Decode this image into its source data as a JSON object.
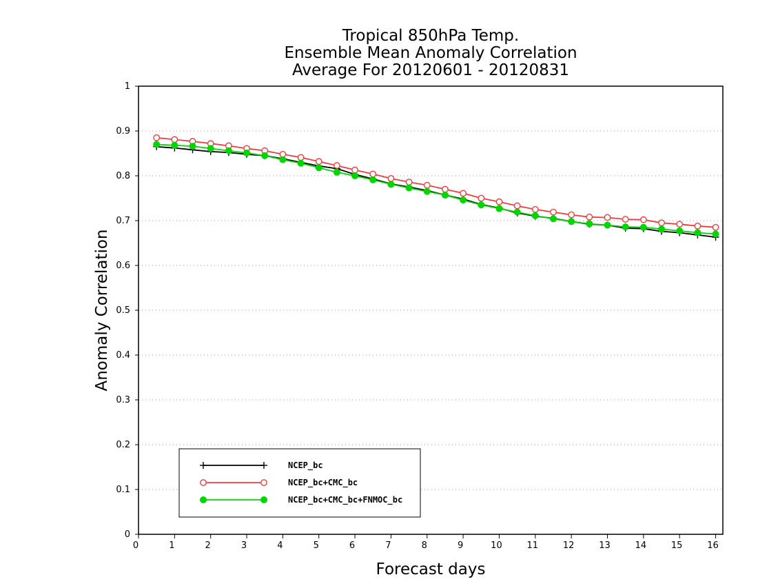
{
  "chart_data": {
    "type": "line",
    "title_lines": [
      "Tropical 850hPa Temp.",
      "Ensemble Mean Anomaly Correlation",
      "Average For 20120601 - 20120831"
    ],
    "xlabel": "Forecast days",
    "ylabel": "Anomaly Correlation",
    "xlim": [
      0,
      16.2
    ],
    "ylim": [
      0,
      1
    ],
    "x_ticks": [
      0,
      1,
      2,
      3,
      4,
      5,
      6,
      7,
      8,
      9,
      10,
      11,
      12,
      13,
      14,
      15,
      16
    ],
    "y_ticks": [
      "0",
      "0.1",
      "0.2",
      "0.3",
      "0.4",
      "0.5",
      "0.6",
      "0.7",
      "0.8",
      "0.9",
      "1"
    ],
    "grid": "horizontal dotted",
    "legend_position": "lower-left",
    "x": [
      0.5,
      1.0,
      1.5,
      2.0,
      2.5,
      3.0,
      3.5,
      4.0,
      4.5,
      5.0,
      5.5,
      6.0,
      6.5,
      7.0,
      7.5,
      8.0,
      8.5,
      9.0,
      9.5,
      10.0,
      10.5,
      11.0,
      11.5,
      12.0,
      12.5,
      13.0,
      13.5,
      14.0,
      14.5,
      15.0,
      15.5,
      16.0
    ],
    "series": [
      {
        "name": "NCEP_bc",
        "color": "#000000",
        "marker": "plus",
        "values": [
          0.865,
          0.862,
          0.858,
          0.854,
          0.852,
          0.848,
          0.845,
          0.838,
          0.83,
          0.822,
          0.816,
          0.803,
          0.793,
          0.782,
          0.775,
          0.767,
          0.757,
          0.748,
          0.736,
          0.728,
          0.717,
          0.71,
          0.705,
          0.698,
          0.692,
          0.69,
          0.683,
          0.682,
          0.676,
          0.673,
          0.668,
          0.663
        ]
      },
      {
        "name": "NCEP_bc+CMC_bc",
        "color": "#ef3d3d",
        "marker": "open-circle",
        "values": [
          0.885,
          0.881,
          0.877,
          0.872,
          0.867,
          0.861,
          0.856,
          0.848,
          0.841,
          0.832,
          0.823,
          0.813,
          0.804,
          0.794,
          0.786,
          0.779,
          0.77,
          0.761,
          0.75,
          0.742,
          0.733,
          0.725,
          0.719,
          0.713,
          0.708,
          0.707,
          0.703,
          0.702,
          0.695,
          0.692,
          0.688,
          0.685
        ]
      },
      {
        "name": "NCEP_bc+CMC_bc+FNMOC_bc",
        "color": "#00d600",
        "marker": "filled-circle",
        "values": [
          0.87,
          0.868,
          0.866,
          0.861,
          0.856,
          0.851,
          0.845,
          0.836,
          0.828,
          0.818,
          0.808,
          0.8,
          0.791,
          0.781,
          0.773,
          0.765,
          0.757,
          0.746,
          0.735,
          0.727,
          0.719,
          0.711,
          0.704,
          0.698,
          0.693,
          0.69,
          0.686,
          0.685,
          0.681,
          0.677,
          0.673,
          0.67
        ]
      }
    ]
  }
}
